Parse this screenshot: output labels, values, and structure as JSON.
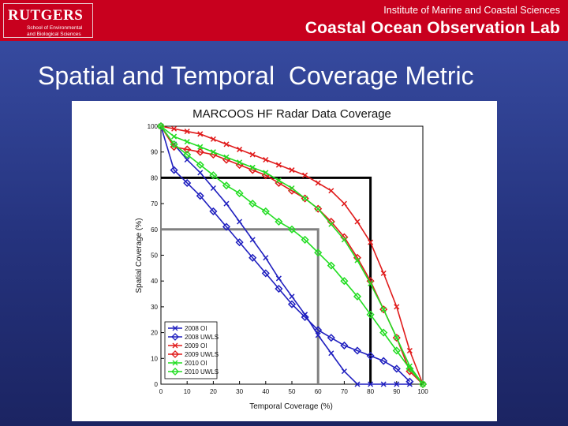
{
  "header": {
    "logo_name": "RUTGERS",
    "logo_subtitle_lines": [
      "School of Environmental",
      "and Biological Sciences"
    ],
    "institute": "Institute of Marine and Coastal Sciences",
    "lab": "Coastal Ocean Observation Lab",
    "banner_color": "#c8001e"
  },
  "slide_title": "Spatial and Temporal  Coverage Metric",
  "chart_data": {
    "type": "line",
    "title": "MARCOOS HF Radar Data Coverage",
    "xlabel": "Temporal Coverage (%)",
    "ylabel": "Spatial Coverage (%)",
    "xlim": [
      0,
      100
    ],
    "ylim": [
      0,
      100
    ],
    "xticks": [
      0,
      10,
      20,
      30,
      40,
      50,
      60,
      70,
      80,
      90,
      100
    ],
    "yticks": [
      0,
      10,
      20,
      30,
      40,
      50,
      60,
      70,
      80,
      90,
      100
    ],
    "grid": false,
    "legend_position": "bottom-left",
    "series": [
      {
        "name": "2008 OI",
        "color": "#1f1fbf",
        "marker": "x",
        "x": [
          0,
          5,
          10,
          15,
          20,
          25,
          30,
          35,
          40,
          45,
          50,
          55,
          60,
          65,
          70,
          75,
          80,
          85,
          90,
          95
        ],
        "y": [
          100,
          93,
          87,
          82,
          76,
          70,
          63,
          56,
          49,
          41,
          34,
          27,
          19,
          12,
          5,
          0,
          0,
          0,
          0,
          0
        ]
      },
      {
        "name": "2008 UWLS",
        "color": "#1f1fbf",
        "marker": "diamond",
        "x": [
          0,
          5,
          10,
          15,
          20,
          25,
          30,
          35,
          40,
          45,
          50,
          55,
          60,
          65,
          70,
          75,
          80,
          85,
          90,
          95
        ],
        "y": [
          100,
          83,
          78,
          73,
          67,
          61,
          55,
          49,
          43,
          37,
          31,
          26,
          21,
          18,
          15,
          13,
          11,
          9,
          6,
          1
        ]
      },
      {
        "name": "2009 OI",
        "color": "#e01b1b",
        "marker": "x",
        "x": [
          0,
          5,
          10,
          15,
          20,
          25,
          30,
          35,
          40,
          45,
          50,
          55,
          60,
          65,
          70,
          75,
          80,
          85,
          90,
          95,
          100
        ],
        "y": [
          100,
          99,
          98,
          97,
          95,
          93,
          91,
          89,
          87,
          85,
          83,
          81,
          78,
          75,
          70,
          63,
          55,
          43,
          30,
          13,
          0
        ]
      },
      {
        "name": "2009 UWLS",
        "color": "#e01b1b",
        "marker": "diamond",
        "x": [
          0,
          5,
          10,
          15,
          20,
          25,
          30,
          35,
          40,
          45,
          50,
          55,
          60,
          65,
          70,
          75,
          80,
          85,
          90,
          95,
          100
        ],
        "y": [
          100,
          92,
          91,
          90,
          89,
          87,
          85,
          83,
          81,
          78,
          75,
          72,
          68,
          63,
          57,
          49,
          40,
          29,
          18,
          5,
          0
        ]
      },
      {
        "name": "2010 OI",
        "color": "#22dd22",
        "marker": "x",
        "x": [
          0,
          5,
          10,
          15,
          20,
          25,
          30,
          35,
          40,
          45,
          50,
          55,
          60,
          65,
          70,
          75,
          80,
          85,
          90,
          95,
          100
        ],
        "y": [
          100,
          96,
          94,
          92,
          90,
          88,
          86,
          84,
          82,
          79,
          76,
          72,
          68,
          62,
          56,
          48,
          39,
          29,
          18,
          7,
          0
        ]
      },
      {
        "name": "2010 UWLS",
        "color": "#22dd22",
        "marker": "diamond",
        "x": [
          0,
          5,
          10,
          15,
          20,
          25,
          30,
          35,
          40,
          45,
          50,
          55,
          60,
          65,
          70,
          75,
          80,
          85,
          90,
          95,
          100
        ],
        "y": [
          100,
          93,
          89,
          85,
          81,
          77,
          74,
          70,
          67,
          63,
          60,
          56,
          51,
          46,
          40,
          34,
          27,
          20,
          13,
          6,
          0
        ]
      }
    ],
    "reference_lines": [
      {
        "color": "#000000",
        "x": 80,
        "y": 80
      },
      {
        "color": "#808080",
        "x": 60,
        "y": 60
      }
    ]
  }
}
